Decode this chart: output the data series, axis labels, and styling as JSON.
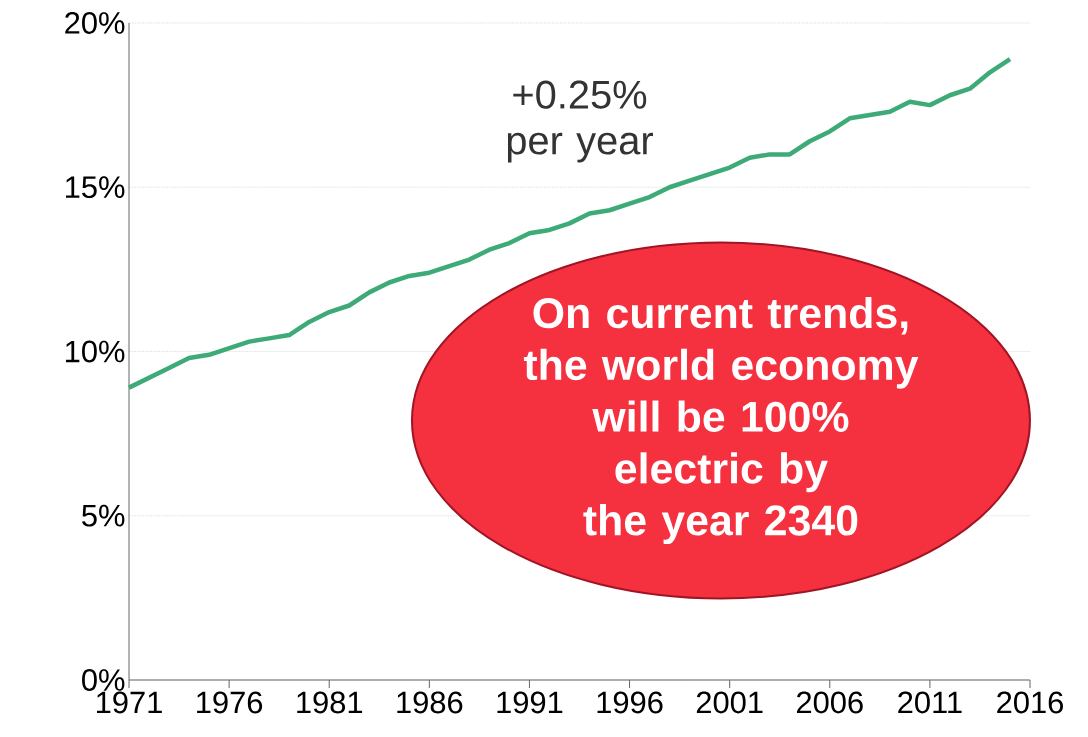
{
  "chart_data": {
    "type": "line",
    "x": [
      1971,
      1972,
      1973,
      1974,
      1975,
      1976,
      1977,
      1978,
      1979,
      1980,
      1981,
      1982,
      1983,
      1984,
      1985,
      1986,
      1987,
      1988,
      1989,
      1990,
      1991,
      1992,
      1993,
      1994,
      1995,
      1996,
      1997,
      1998,
      1999,
      2000,
      2001,
      2002,
      2003,
      2004,
      2005,
      2006,
      2007,
      2008,
      2009,
      2010,
      2011,
      2012,
      2013,
      2014,
      2015
    ],
    "series": [
      {
        "color": "#3daa78",
        "values": [
          8.9,
          9.2,
          9.5,
          9.8,
          9.9,
          10.1,
          10.3,
          10.4,
          10.5,
          10.9,
          11.2,
          11.4,
          11.8,
          12.1,
          12.3,
          12.4,
          12.6,
          12.8,
          13.1,
          13.3,
          13.6,
          13.7,
          13.9,
          14.2,
          14.3,
          14.5,
          14.7,
          15.0,
          15.2,
          15.4,
          15.6,
          15.9,
          16.0,
          16.0,
          16.4,
          16.7,
          17.1,
          17.2,
          17.3,
          17.6,
          17.5,
          17.8,
          18.0,
          18.5,
          18.9
        ]
      }
    ],
    "xlim": [
      1971,
      2016
    ],
    "ylim": [
      0,
      20
    ],
    "xticks": [
      1971,
      1976,
      1981,
      1986,
      1991,
      1996,
      2001,
      2006,
      2011,
      2016
    ],
    "yticks": [
      {
        "value": 0,
        "label": "0%"
      },
      {
        "value": 5,
        "label": "5%"
      },
      {
        "value": 10,
        "label": "10%"
      },
      {
        "value": 15,
        "label": "15%"
      },
      {
        "value": 20,
        "label": "20%"
      }
    ],
    "grid": "y",
    "annotations": [
      "+0.25% per year",
      "On current trends, the world economy will be 100% electric by the year 2340"
    ]
  }
}
